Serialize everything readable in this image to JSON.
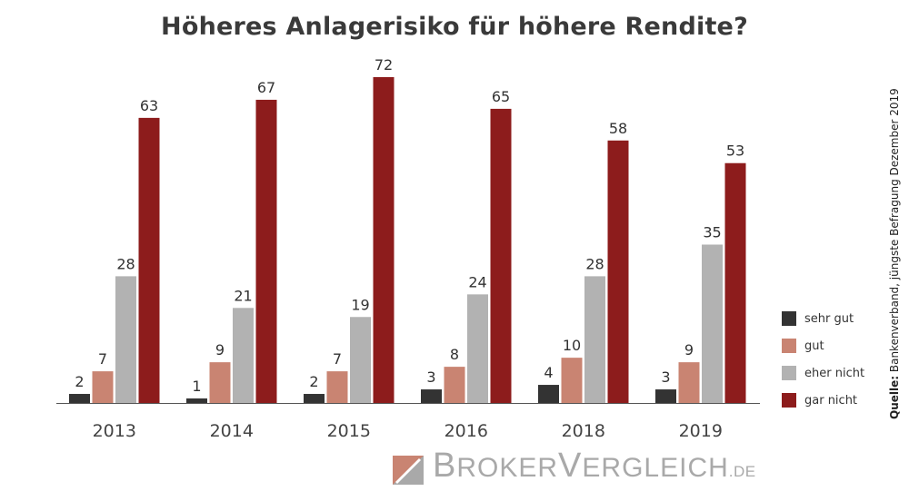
{
  "title": "Höheres Anlagerisiko für höhere Rendite?",
  "source": {
    "label": "Quelle:",
    "text": " Bankenverband, jüngste Befragung Dezember 2019"
  },
  "logo": {
    "parts": [
      {
        "text": "B",
        "big": true
      },
      {
        "text": "ROKER",
        "big": false
      },
      {
        "text": "V",
        "big": true
      },
      {
        "text": "ERGLEICH",
        "big": false
      },
      {
        "text": ".DE",
        "de": true
      }
    ]
  },
  "chart_data": {
    "type": "bar",
    "title": "Höheres Anlagerisiko für höhere Rendite?",
    "categories": [
      "2013",
      "2014",
      "2015",
      "2016",
      "2018",
      "2019"
    ],
    "series": [
      {
        "name": "sehr gut",
        "color": "#333333",
        "values": [
          2,
          1,
          2,
          3,
          4,
          3
        ]
      },
      {
        "name": "gut",
        "color": "#c98472",
        "values": [
          7,
          9,
          7,
          8,
          10,
          9
        ]
      },
      {
        "name": "eher nicht",
        "color": "#b2b2b2",
        "values": [
          28,
          21,
          19,
          24,
          28,
          35
        ]
      },
      {
        "name": "gar nicht",
        "color": "#8d1c1c",
        "values": [
          63,
          67,
          72,
          65,
          58,
          53
        ]
      }
    ],
    "ylim": [
      0,
      72
    ],
    "legend": "right",
    "grid": false
  }
}
